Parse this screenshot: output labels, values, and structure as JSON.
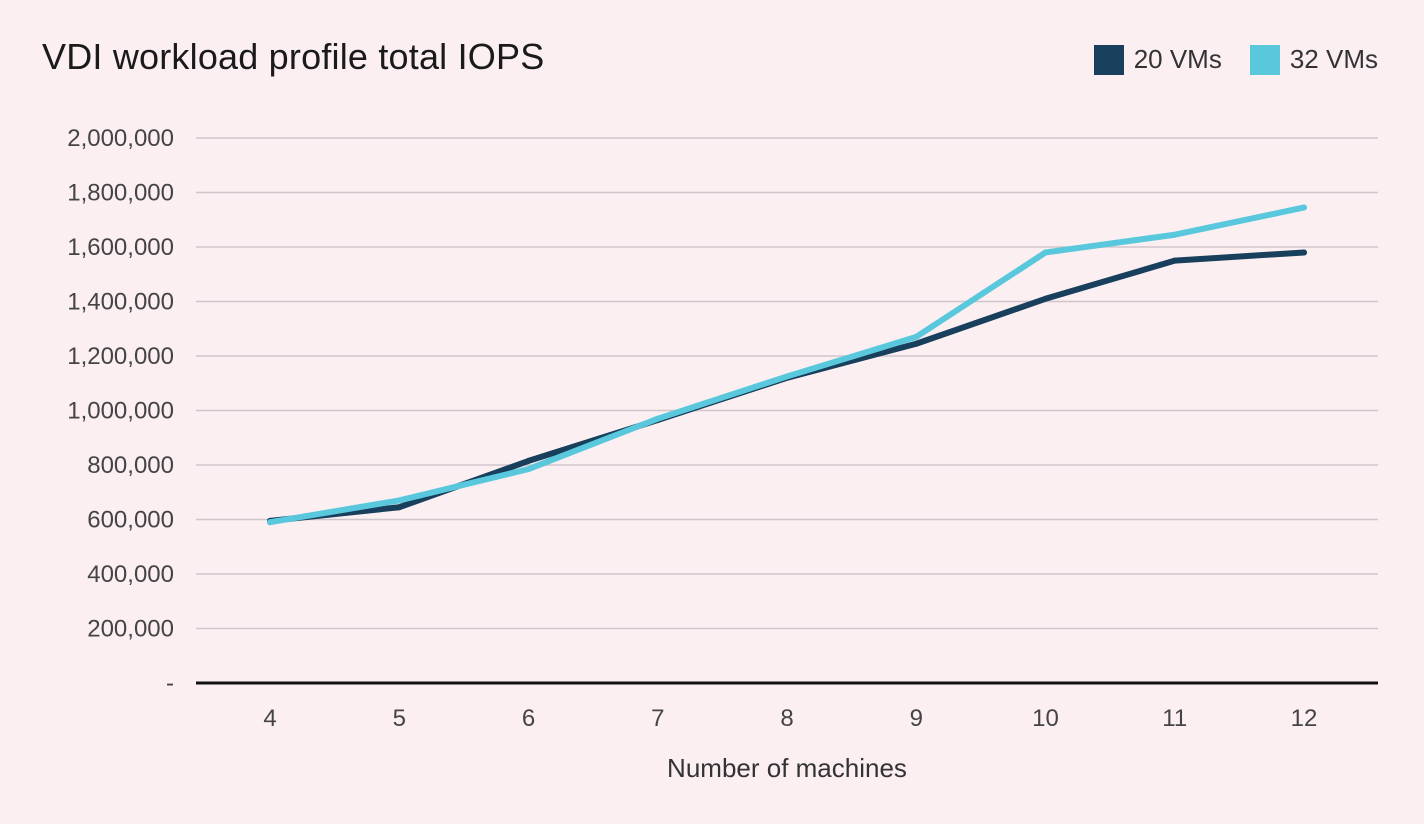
{
  "chart_data": {
    "type": "line",
    "title": "VDI workload profile total IOPS",
    "xlabel": "Number of machines",
    "ylabel": "",
    "x": [
      4,
      5,
      6,
      7,
      8,
      9,
      10,
      11,
      12
    ],
    "ylim": [
      0,
      2000000
    ],
    "yticks": [
      0,
      200000,
      400000,
      600000,
      800000,
      1000000,
      1200000,
      1400000,
      1600000,
      1800000,
      2000000
    ],
    "ytick_labels": [
      "-",
      "200,000",
      "400,000",
      "600,000",
      "800,000",
      "1,000,000",
      "1,200,000",
      "1,400,000",
      "1,600,000",
      "1,800,000",
      "2,000,000"
    ],
    "grid": true,
    "legend_position": "top-right",
    "series": [
      {
        "name": "20 VMs",
        "color": "#183f5c",
        "values": [
          595000,
          645000,
          815000,
          965000,
          1120000,
          1245000,
          1410000,
          1550000,
          1580000
        ]
      },
      {
        "name": "32 VMs",
        "color": "#5ac8dc",
        "values": [
          590000,
          670000,
          785000,
          970000,
          1125000,
          1270000,
          1580000,
          1645000,
          1745000
        ]
      }
    ]
  }
}
